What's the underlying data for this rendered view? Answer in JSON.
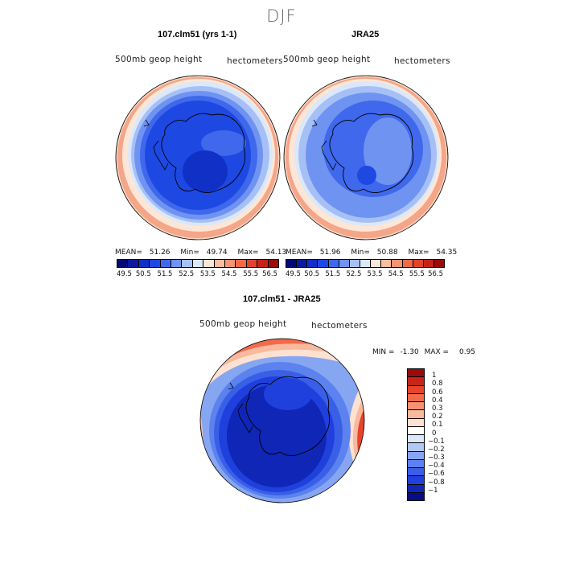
{
  "title": "DJF",
  "panels": [
    {
      "title": "107.clm51 (yrs 1-1)",
      "left_label": "500mb geop height",
      "right_label": "hectometers",
      "stats": {
        "mean_label": "MEAN=",
        "mean": "51.26",
        "min_label": "Min=",
        "min": "49.74",
        "max_label": "Max=",
        "max": "54.13"
      }
    },
    {
      "title": "JRA25",
      "left_label": "500mb geop height",
      "right_label": "hectometers",
      "stats": {
        "mean_label": "MEAN=",
        "mean": "51.96",
        "min_label": "Min=",
        "min": "50.88",
        "max_label": "Max=",
        "max": "54.35"
      }
    }
  ],
  "shared_colorbar": {
    "colors": [
      "#000a72",
      "#0b1a9c",
      "#1030c6",
      "#1e48e2",
      "#3f68ec",
      "#6f93f1",
      "#a6c0f6",
      "#dbe8fa",
      "#fde6d6",
      "#f9bda0",
      "#f49471",
      "#ef6a47",
      "#e0452c",
      "#c42318",
      "#9a0c0a"
    ],
    "labels": [
      "49.5",
      "50.5",
      "51.5",
      "52.5",
      "53.5",
      "54.5",
      "55.5",
      "56.5"
    ]
  },
  "diff_panel": {
    "title": "107.clm51 - JRA25",
    "left_label": "500mb geop height",
    "right_label": "hectometers",
    "stats": {
      "min_label": "MIN =",
      "min": "-1.30",
      "max_label": "MAX =",
      "max": "0.95"
    },
    "colorbar": {
      "colors": [
        "#980c0a",
        "#c7241a",
        "#e4452c",
        "#f36a4b",
        "#f59273",
        "#f9b99e",
        "#fde2d1",
        "#ffffff",
        "#dbe7fa",
        "#b1c9f6",
        "#86a6f2",
        "#5b82ee",
        "#3a5fe7",
        "#1f40dc",
        "#0f26b6",
        "#040f84"
      ],
      "labels": [
        "1",
        "0.8",
        "0.6",
        "0.4",
        "0.3",
        "0.2",
        "0.1",
        "0",
        "−0.1",
        "−0.2",
        "−0.3",
        "−0.4",
        "−0.6",
        "−0.8",
        "−1"
      ]
    }
  },
  "map_colors": {
    "ocean_ring_warm": "#f4a688",
    "outer_mid": "#a6c0f6",
    "mid": "#6f93f1",
    "inner": "#3f68ec",
    "core": "#1e48e2",
    "deep": "#1030c6",
    "coast": "#000000",
    "diff_red": "#e4452c",
    "diff_blue_deep": "#0f26b6"
  }
}
